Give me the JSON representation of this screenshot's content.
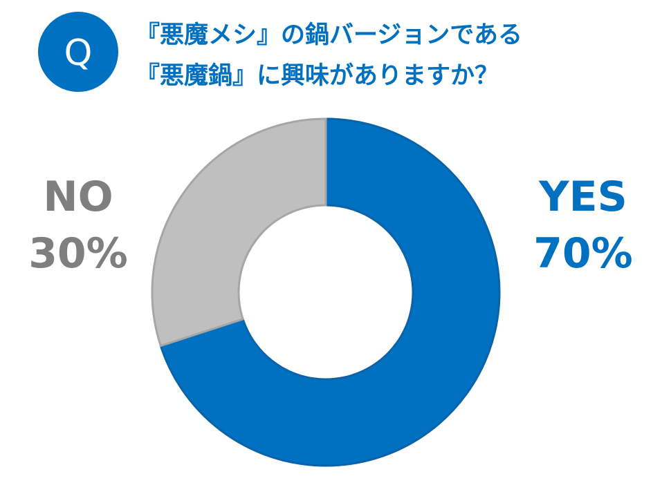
{
  "chart_data": {
    "type": "donut",
    "badge": "Q",
    "title": [
      "『悪魔メシ』の鍋バージョンである",
      "『悪魔鍋』に興味がありますか？"
    ],
    "categories": [
      "YES",
      "NO"
    ],
    "values": [
      70,
      30
    ],
    "value_labels": [
      "70%",
      "30%"
    ],
    "colors": [
      "#0070c0",
      "#bfbfbf"
    ],
    "label_colors": [
      "#0070c0",
      "#7f7f7f"
    ]
  }
}
